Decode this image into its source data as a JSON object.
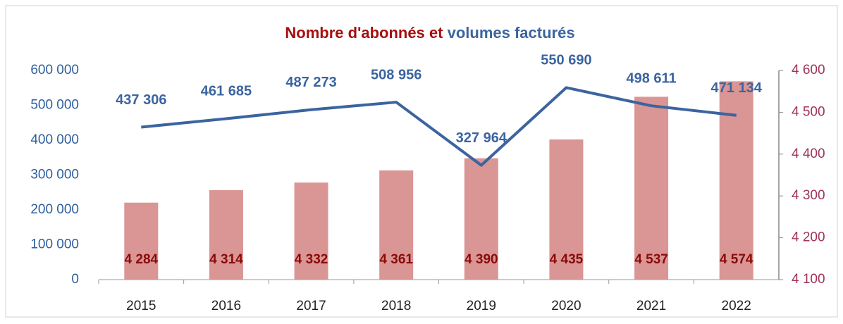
{
  "chart_data": {
    "type": "combo",
    "title": [
      "Nombre d'abonnés",
      "et",
      "volumes facturés"
    ],
    "title_colors": [
      "#a50f0f",
      "#a50f0f",
      "#3b64a0"
    ],
    "categories": [
      "2015",
      "2016",
      "2017",
      "2018",
      "2019",
      "2020",
      "2021",
      "2022"
    ],
    "series": [
      {
        "type": "bar",
        "axis": "y2",
        "color": "#d99694",
        "label_color": "#8b0a0a",
        "values": [
          4284,
          4314,
          4332,
          4361,
          4390,
          4435,
          4537,
          4574
        ],
        "value_labels": [
          "4 284",
          "4 314",
          "4 332",
          "4 361",
          "4 390",
          "4 435",
          "4 537",
          "4 574"
        ]
      },
      {
        "type": "line",
        "color": "#3b64a0",
        "label_color": "#3b64a0",
        "values": [
          437306,
          461685,
          487273,
          508956,
          327964,
          550690,
          498611,
          471134
        ],
        "value_labels": [
          "437 306",
          "461 685",
          "487 273",
          "508 956",
          "327 964",
          "550 690",
          "498 611",
          "471 134"
        ]
      }
    ],
    "ylim": [
      0,
      600000
    ],
    "yticks": [
      0,
      {
        "value": 100000,
        "label": "100 000"
      },
      {
        "value": 200000,
        "label": "200 000"
      },
      {
        "value": 300000,
        "label": "300 000"
      },
      {
        "value": 400000,
        "label": "400 000"
      },
      {
        "value": 500000,
        "label": "500 000"
      },
      {
        "value": 600000,
        "label": "600 000"
      }
    ],
    "y2lim": [
      4100,
      4600
    ],
    "y2ticks": [
      {
        "value": 4100,
        "label": "4 100"
      },
      {
        "value": 4200,
        "label": "4 200"
      },
      {
        "value": 4300,
        "label": "4 300"
      },
      {
        "value": 4400,
        "label": "4 400"
      },
      {
        "value": 4500,
        "label": "4 500"
      },
      {
        "value": 4600,
        "label": "4 600"
      }
    ],
    "ytick_color": "#2e5f9e",
    "y2tick_color": "#a0335b",
    "grid": false
  }
}
